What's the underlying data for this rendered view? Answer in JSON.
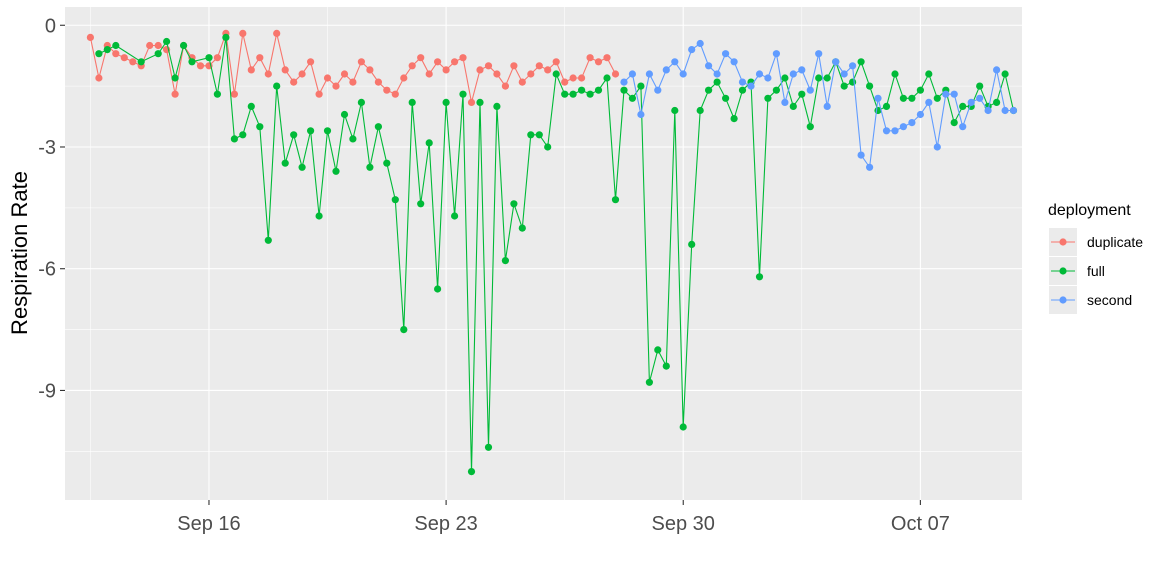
{
  "chart_data": {
    "type": "line",
    "ylabel": "Respiration Rate",
    "xlabel": "",
    "xlim": [
      "2024-09-11T18:00",
      "2024-10-10T00:00"
    ],
    "ylim": [
      -11.7,
      0.45
    ],
    "x_ticks": [
      {
        "date": "2024-09-16",
        "label": "Sep 16"
      },
      {
        "date": "2024-09-23",
        "label": "Sep 23"
      },
      {
        "date": "2024-09-30",
        "label": "Sep 30"
      },
      {
        "date": "2024-10-07",
        "label": "Oct 07"
      }
    ],
    "y_ticks": [
      0,
      -3,
      -6,
      -9
    ],
    "y_tick_labels": [
      "0",
      "-3",
      "-6",
      "-9"
    ],
    "grid": true,
    "legend": {
      "title": "deployment",
      "position": "right"
    },
    "series": [
      {
        "name": "duplicate",
        "color": "#F8766D",
        "points": [
          [
            "2024-09-12T12:00",
            -0.3
          ],
          [
            "2024-09-12T18:00",
            -1.3
          ],
          [
            "2024-09-13T00:00",
            -0.5
          ],
          [
            "2024-09-13T06:00",
            -0.7
          ],
          [
            "2024-09-13T12:00",
            -0.8
          ],
          [
            "2024-09-13T18:00",
            -0.9
          ],
          [
            "2024-09-14T00:00",
            -1.0
          ],
          [
            "2024-09-14T06:00",
            -0.5
          ],
          [
            "2024-09-14T12:00",
            -0.5
          ],
          [
            "2024-09-14T18:00",
            -0.6
          ],
          [
            "2024-09-15T00:00",
            -1.7
          ],
          [
            "2024-09-15T06:00",
            -0.5
          ],
          [
            "2024-09-15T12:00",
            -0.8
          ],
          [
            "2024-09-15T18:00",
            -1.0
          ],
          [
            "2024-09-16T00:00",
            -1.0
          ],
          [
            "2024-09-16T06:00",
            -0.8
          ],
          [
            "2024-09-16T12:00",
            -0.2
          ],
          [
            "2024-09-16T18:00",
            -1.7
          ],
          [
            "2024-09-17T00:00",
            -0.2
          ],
          [
            "2024-09-17T06:00",
            -1.1
          ],
          [
            "2024-09-17T12:00",
            -0.8
          ],
          [
            "2024-09-17T18:00",
            -1.2
          ],
          [
            "2024-09-18T00:00",
            -0.2
          ],
          [
            "2024-09-18T06:00",
            -1.1
          ],
          [
            "2024-09-18T12:00",
            -1.4
          ],
          [
            "2024-09-18T18:00",
            -1.2
          ],
          [
            "2024-09-19T00:00",
            -0.9
          ],
          [
            "2024-09-19T06:00",
            -1.7
          ],
          [
            "2024-09-19T12:00",
            -1.3
          ],
          [
            "2024-09-19T18:00",
            -1.5
          ],
          [
            "2024-09-20T00:00",
            -1.2
          ],
          [
            "2024-09-20T06:00",
            -1.4
          ],
          [
            "2024-09-20T12:00",
            -0.9
          ],
          [
            "2024-09-20T18:00",
            -1.1
          ],
          [
            "2024-09-21T00:00",
            -1.4
          ],
          [
            "2024-09-21T06:00",
            -1.6
          ],
          [
            "2024-09-21T12:00",
            -1.7
          ],
          [
            "2024-09-21T18:00",
            -1.3
          ],
          [
            "2024-09-22T00:00",
            -1.0
          ],
          [
            "2024-09-22T06:00",
            -0.8
          ],
          [
            "2024-09-22T12:00",
            -1.2
          ],
          [
            "2024-09-22T18:00",
            -0.9
          ],
          [
            "2024-09-23T00:00",
            -1.1
          ],
          [
            "2024-09-23T06:00",
            -0.9
          ],
          [
            "2024-09-23T12:00",
            -0.8
          ],
          [
            "2024-09-23T18:00",
            -1.9
          ],
          [
            "2024-09-24T00:00",
            -1.1
          ],
          [
            "2024-09-24T06:00",
            -1.0
          ],
          [
            "2024-09-24T12:00",
            -1.2
          ],
          [
            "2024-09-24T18:00",
            -1.5
          ],
          [
            "2024-09-25T00:00",
            -1.0
          ],
          [
            "2024-09-25T06:00",
            -1.4
          ],
          [
            "2024-09-25T12:00",
            -1.2
          ],
          [
            "2024-09-25T18:00",
            -1.0
          ],
          [
            "2024-09-26T00:00",
            -1.1
          ],
          [
            "2024-09-26T06:00",
            -0.9
          ],
          [
            "2024-09-26T12:00",
            -1.4
          ],
          [
            "2024-09-26T18:00",
            -1.3
          ],
          [
            "2024-09-27T00:00",
            -1.3
          ],
          [
            "2024-09-27T06:00",
            -0.8
          ],
          [
            "2024-09-27T12:00",
            -0.9
          ],
          [
            "2024-09-27T18:00",
            -0.8
          ],
          [
            "2024-09-28T00:00",
            -1.2
          ]
        ]
      },
      {
        "name": "full",
        "color": "#00BA38",
        "points": [
          [
            "2024-09-12T18:00",
            -0.7
          ],
          [
            "2024-09-13T00:00",
            -0.6
          ],
          [
            "2024-09-13T06:00",
            -0.5
          ],
          [
            "2024-09-14T00:00",
            -0.9
          ],
          [
            "2024-09-14T12:00",
            -0.7
          ],
          [
            "2024-09-14T18:00",
            -0.4
          ],
          [
            "2024-09-15T00:00",
            -1.3
          ],
          [
            "2024-09-15T06:00",
            -0.5
          ],
          [
            "2024-09-15T12:00",
            -0.9
          ],
          [
            "2024-09-16T00:00",
            -0.8
          ],
          [
            "2024-09-16T06:00",
            -1.7
          ],
          [
            "2024-09-16T12:00",
            -0.3
          ],
          [
            "2024-09-16T18:00",
            -2.8
          ],
          [
            "2024-09-17T00:00",
            -2.7
          ],
          [
            "2024-09-17T06:00",
            -2.0
          ],
          [
            "2024-09-17T12:00",
            -2.5
          ],
          [
            "2024-09-17T18:00",
            -5.3
          ],
          [
            "2024-09-18T00:00",
            -1.5
          ],
          [
            "2024-09-18T06:00",
            -3.4
          ],
          [
            "2024-09-18T12:00",
            -2.7
          ],
          [
            "2024-09-18T18:00",
            -3.5
          ],
          [
            "2024-09-19T00:00",
            -2.6
          ],
          [
            "2024-09-19T06:00",
            -4.7
          ],
          [
            "2024-09-19T12:00",
            -2.6
          ],
          [
            "2024-09-19T18:00",
            -3.6
          ],
          [
            "2024-09-20T00:00",
            -2.2
          ],
          [
            "2024-09-20T06:00",
            -2.8
          ],
          [
            "2024-09-20T12:00",
            -1.9
          ],
          [
            "2024-09-20T18:00",
            -3.5
          ],
          [
            "2024-09-21T00:00",
            -2.5
          ],
          [
            "2024-09-21T06:00",
            -3.4
          ],
          [
            "2024-09-21T12:00",
            -4.3
          ],
          [
            "2024-09-21T18:00",
            -7.5
          ],
          [
            "2024-09-22T00:00",
            -1.9
          ],
          [
            "2024-09-22T06:00",
            -4.4
          ],
          [
            "2024-09-22T12:00",
            -2.9
          ],
          [
            "2024-09-22T18:00",
            -6.5
          ],
          [
            "2024-09-23T00:00",
            -1.9
          ],
          [
            "2024-09-23T06:00",
            -4.7
          ],
          [
            "2024-09-23T12:00",
            -1.7
          ],
          [
            "2024-09-23T18:00",
            -11.0
          ],
          [
            "2024-09-24T00:00",
            -1.9
          ],
          [
            "2024-09-24T06:00",
            -10.4
          ],
          [
            "2024-09-24T12:00",
            -2.0
          ],
          [
            "2024-09-24T18:00",
            -5.8
          ],
          [
            "2024-09-25T00:00",
            -4.4
          ],
          [
            "2024-09-25T06:00",
            -5.0
          ],
          [
            "2024-09-25T12:00",
            -2.7
          ],
          [
            "2024-09-25T18:00",
            -2.7
          ],
          [
            "2024-09-26T00:00",
            -3.0
          ],
          [
            "2024-09-26T06:00",
            -1.2
          ],
          [
            "2024-09-26T12:00",
            -1.7
          ],
          [
            "2024-09-26T18:00",
            -1.7
          ],
          [
            "2024-09-27T00:00",
            -1.6
          ],
          [
            "2024-09-27T06:00",
            -1.7
          ],
          [
            "2024-09-27T12:00",
            -1.6
          ],
          [
            "2024-09-27T18:00",
            -1.3
          ],
          [
            "2024-09-28T00:00",
            -4.3
          ],
          [
            "2024-09-28T06:00",
            -1.6
          ],
          [
            "2024-09-28T12:00",
            -1.8
          ],
          [
            "2024-09-28T18:00",
            -1.5
          ],
          [
            "2024-09-29T00:00",
            -8.8
          ],
          [
            "2024-09-29T06:00",
            -8.0
          ],
          [
            "2024-09-29T12:00",
            -8.4
          ],
          [
            "2024-09-29T18:00",
            -2.1
          ],
          [
            "2024-09-30T00:00",
            -9.9
          ],
          [
            "2024-09-30T06:00",
            -5.4
          ],
          [
            "2024-09-30T12:00",
            -2.1
          ],
          [
            "2024-09-30T18:00",
            -1.6
          ],
          [
            "2024-10-01T00:00",
            -1.4
          ],
          [
            "2024-10-01T06:00",
            -1.8
          ],
          [
            "2024-10-01T12:00",
            -2.3
          ],
          [
            "2024-10-01T18:00",
            -1.6
          ],
          [
            "2024-10-02T00:00",
            -1.4
          ],
          [
            "2024-10-02T06:00",
            -6.2
          ],
          [
            "2024-10-02T12:00",
            -1.8
          ],
          [
            "2024-10-02T18:00",
            -1.6
          ],
          [
            "2024-10-03T00:00",
            -1.3
          ],
          [
            "2024-10-03T06:00",
            -2.0
          ],
          [
            "2024-10-03T12:00",
            -1.7
          ],
          [
            "2024-10-03T18:00",
            -2.5
          ],
          [
            "2024-10-04T00:00",
            -1.3
          ],
          [
            "2024-10-04T06:00",
            -1.3
          ],
          [
            "2024-10-04T12:00",
            -0.9
          ],
          [
            "2024-10-04T18:00",
            -1.5
          ],
          [
            "2024-10-05T00:00",
            -1.4
          ],
          [
            "2024-10-05T06:00",
            -0.9
          ],
          [
            "2024-10-05T12:00",
            -1.5
          ],
          [
            "2024-10-05T18:00",
            -2.1
          ],
          [
            "2024-10-06T00:00",
            -2.0
          ],
          [
            "2024-10-06T06:00",
            -1.2
          ],
          [
            "2024-10-06T12:00",
            -1.8
          ],
          [
            "2024-10-06T18:00",
            -1.8
          ],
          [
            "2024-10-07T00:00",
            -1.6
          ],
          [
            "2024-10-07T06:00",
            -1.2
          ],
          [
            "2024-10-07T12:00",
            -1.8
          ],
          [
            "2024-10-07T18:00",
            -1.6
          ],
          [
            "2024-10-08T00:00",
            -2.4
          ],
          [
            "2024-10-08T06:00",
            -2.0
          ],
          [
            "2024-10-08T12:00",
            -2.0
          ],
          [
            "2024-10-08T18:00",
            -1.5
          ],
          [
            "2024-10-09T00:00",
            -2.0
          ],
          [
            "2024-10-09T06:00",
            -1.9
          ],
          [
            "2024-10-09T12:00",
            -1.2
          ],
          [
            "2024-10-09T18:00",
            -2.1
          ]
        ]
      },
      {
        "name": "second",
        "color": "#619CFF",
        "points": [
          [
            "2024-09-28T06:00",
            -1.4
          ],
          [
            "2024-09-28T12:00",
            -1.2
          ],
          [
            "2024-09-28T18:00",
            -2.2
          ],
          [
            "2024-09-29T00:00",
            -1.2
          ],
          [
            "2024-09-29T06:00",
            -1.6
          ],
          [
            "2024-09-29T12:00",
            -1.1
          ],
          [
            "2024-09-29T18:00",
            -0.9
          ],
          [
            "2024-09-30T00:00",
            -1.2
          ],
          [
            "2024-09-30T06:00",
            -0.6
          ],
          [
            "2024-09-30T12:00",
            -0.45
          ],
          [
            "2024-09-30T18:00",
            -1.0
          ],
          [
            "2024-10-01T00:00",
            -1.2
          ],
          [
            "2024-10-01T06:00",
            -0.7
          ],
          [
            "2024-10-01T12:00",
            -0.9
          ],
          [
            "2024-10-01T18:00",
            -1.4
          ],
          [
            "2024-10-02T00:00",
            -1.5
          ],
          [
            "2024-10-02T06:00",
            -1.2
          ],
          [
            "2024-10-02T12:00",
            -1.3
          ],
          [
            "2024-10-02T18:00",
            -0.7
          ],
          [
            "2024-10-03T00:00",
            -1.9
          ],
          [
            "2024-10-03T06:00",
            -1.2
          ],
          [
            "2024-10-03T12:00",
            -1.1
          ],
          [
            "2024-10-03T18:00",
            -1.6
          ],
          [
            "2024-10-04T00:00",
            -0.7
          ],
          [
            "2024-10-04T06:00",
            -2.0
          ],
          [
            "2024-10-04T12:00",
            -0.9
          ],
          [
            "2024-10-04T18:00",
            -1.2
          ],
          [
            "2024-10-05T00:00",
            -1.0
          ],
          [
            "2024-10-05T06:00",
            -3.2
          ],
          [
            "2024-10-05T12:00",
            -3.5
          ],
          [
            "2024-10-05T18:00",
            -1.8
          ],
          [
            "2024-10-06T00:00",
            -2.6
          ],
          [
            "2024-10-06T06:00",
            -2.6
          ],
          [
            "2024-10-06T12:00",
            -2.5
          ],
          [
            "2024-10-06T18:00",
            -2.4
          ],
          [
            "2024-10-07T00:00",
            -2.2
          ],
          [
            "2024-10-07T06:00",
            -1.9
          ],
          [
            "2024-10-07T12:00",
            -3.0
          ],
          [
            "2024-10-07T18:00",
            -1.7
          ],
          [
            "2024-10-08T00:00",
            -1.7
          ],
          [
            "2024-10-08T06:00",
            -2.5
          ],
          [
            "2024-10-08T12:00",
            -1.9
          ],
          [
            "2024-10-08T18:00",
            -1.8
          ],
          [
            "2024-10-09T00:00",
            -2.1
          ],
          [
            "2024-10-09T06:00",
            -1.1
          ],
          [
            "2024-10-09T12:00",
            -2.1
          ],
          [
            "2024-10-09T18:00",
            -2.1
          ]
        ]
      }
    ]
  }
}
